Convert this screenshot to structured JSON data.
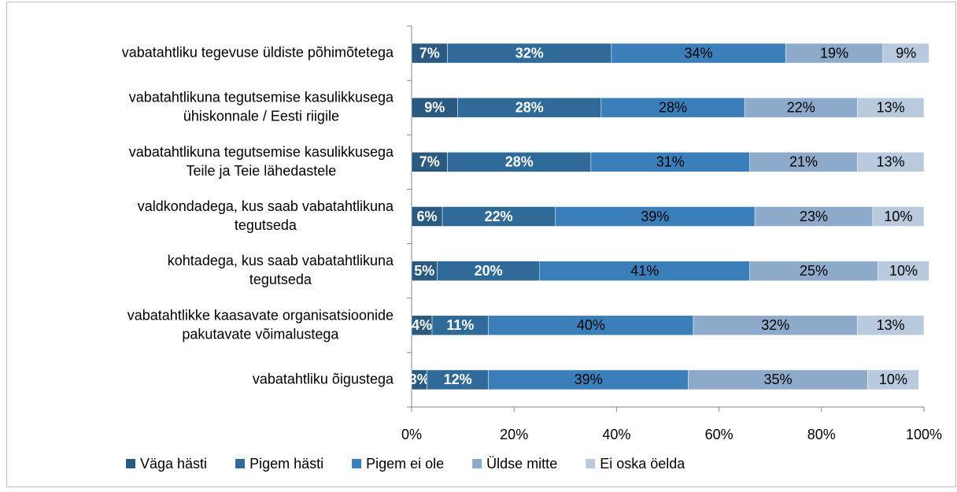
{
  "chart_data": {
    "type": "stacked-bar-horizontal",
    "categories": [
      "vabatahtliku tegevuse üldiste põhimõtetega",
      "vabatahtlikuna tegutsemise kasulikkusega\nühiskonnale / Eesti riigile",
      "vabatahtlikuna tegutsemise kasulikkusega\nTeile ja Teie lähedastele",
      "valdkondadega, kus saab vabatahtlikuna\ntegutseda",
      "kohtadega, kus saab vabatahtlikuna\ntegutseda",
      "vabatahtlikke kaasavate organisatsioonide\npakutavate võimalustega",
      "vabatahtliku õigustega"
    ],
    "series": [
      {
        "name": "Väga hästi",
        "color": "#2a5a80",
        "values": [
          7,
          9,
          7,
          6,
          5,
          4,
          3
        ],
        "value_labels": [
          "7%",
          "9%",
          "7%",
          "6%",
          "5%",
          "4%",
          "3%"
        ]
      },
      {
        "name": "Pigem hästi",
        "color": "#2f6a98",
        "values": [
          32,
          28,
          28,
          22,
          20,
          11,
          12
        ],
        "value_labels": [
          "32%",
          "28%",
          "28%",
          "22%",
          "20%",
          "11%",
          "12%"
        ]
      },
      {
        "name": "Pigem ei ole",
        "color": "#3a7fba",
        "values": [
          34,
          28,
          31,
          39,
          41,
          40,
          39
        ],
        "value_labels": [
          "34%",
          "28%",
          "31%",
          "39%",
          "41%",
          "40%",
          "39%"
        ]
      },
      {
        "name": "Üldse mitte",
        "color": "#8eaacb",
        "values": [
          19,
          22,
          21,
          23,
          25,
          32,
          35
        ],
        "value_labels": [
          "19%",
          "22%",
          "21%",
          "23%",
          "25%",
          "32%",
          "35%"
        ]
      },
      {
        "name": "Ei oska öelda",
        "color": "#b9cadf",
        "values": [
          9,
          13,
          13,
          10,
          10,
          13,
          10
        ],
        "value_labels": [
          "9%",
          "13%",
          "13%",
          "10%",
          "10%",
          "13%",
          "10%"
        ]
      }
    ],
    "xlim": [
      0,
      100
    ],
    "xticks": [
      {
        "value": 0,
        "label": "0%"
      },
      {
        "value": 20,
        "label": "20%"
      },
      {
        "value": 40,
        "label": "40%"
      },
      {
        "value": 60,
        "label": "60%"
      },
      {
        "value": 80,
        "label": "80%"
      },
      {
        "value": 100,
        "label": "100%"
      }
    ],
    "legend": "bottom"
  }
}
